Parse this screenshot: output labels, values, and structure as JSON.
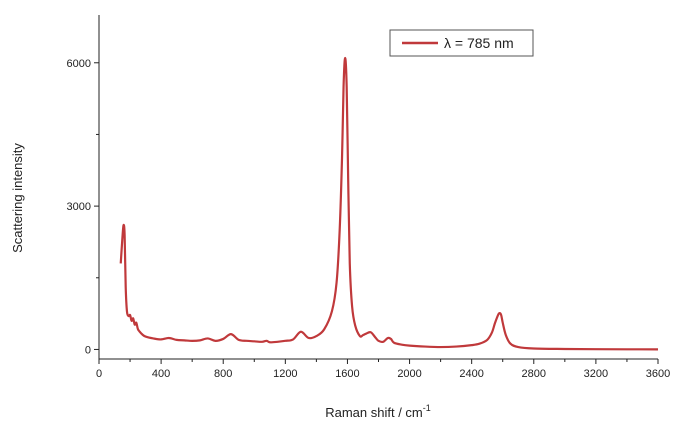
{
  "chart_data": {
    "type": "line",
    "title": "",
    "xlabel": "Raman shift  / cm",
    "xlabel_superscript": "-1",
    "ylabel": "Scattering intensity",
    "xlim": [
      0,
      3600
    ],
    "ylim": [
      -200,
      7000
    ],
    "xticks": [
      0,
      400,
      800,
      1200,
      1600,
      2000,
      2400,
      2800,
      3200,
      3600
    ],
    "yticks": [
      0,
      3000,
      6000
    ],
    "grid": false,
    "legend_position": "top-right",
    "line_color": "#c0393b",
    "series": [
      {
        "name": "λ = 785 nm",
        "x": [
          140,
          150,
          158,
          165,
          172,
          180,
          190,
          200,
          210,
          220,
          230,
          240,
          250,
          260,
          280,
          300,
          350,
          400,
          450,
          500,
          550,
          600,
          650,
          700,
          750,
          800,
          850,
          900,
          950,
          1000,
          1050,
          1080,
          1100,
          1150,
          1200,
          1250,
          1300,
          1350,
          1400,
          1450,
          1500,
          1530,
          1550,
          1565,
          1575,
          1585,
          1595,
          1605,
          1615,
          1630,
          1650,
          1680,
          1700,
          1720,
          1750,
          1780,
          1800,
          1830,
          1860,
          1880,
          1900,
          1950,
          2000,
          2100,
          2200,
          2300,
          2400,
          2450,
          2500,
          2530,
          2550,
          2570,
          2580,
          2590,
          2600,
          2620,
          2650,
          2700,
          2800,
          3000,
          3200,
          3400,
          3600
        ],
        "y": [
          1800,
          2300,
          2600,
          2400,
          1300,
          800,
          700,
          720,
          600,
          650,
          520,
          560,
          430,
          380,
          310,
          270,
          230,
          210,
          240,
          200,
          190,
          180,
          190,
          230,
          180,
          220,
          320,
          200,
          180,
          170,
          160,
          180,
          150,
          160,
          180,
          210,
          370,
          240,
          280,
          420,
          800,
          1400,
          2500,
          4000,
          5500,
          6100,
          5500,
          3500,
          1800,
          900,
          500,
          280,
          300,
          330,
          360,
          250,
          180,
          160,
          240,
          220,
          140,
          100,
          80,
          60,
          50,
          60,
          90,
          120,
          200,
          350,
          550,
          720,
          760,
          720,
          560,
          300,
          120,
          50,
          20,
          10,
          5,
          3,
          2
        ]
      }
    ]
  }
}
